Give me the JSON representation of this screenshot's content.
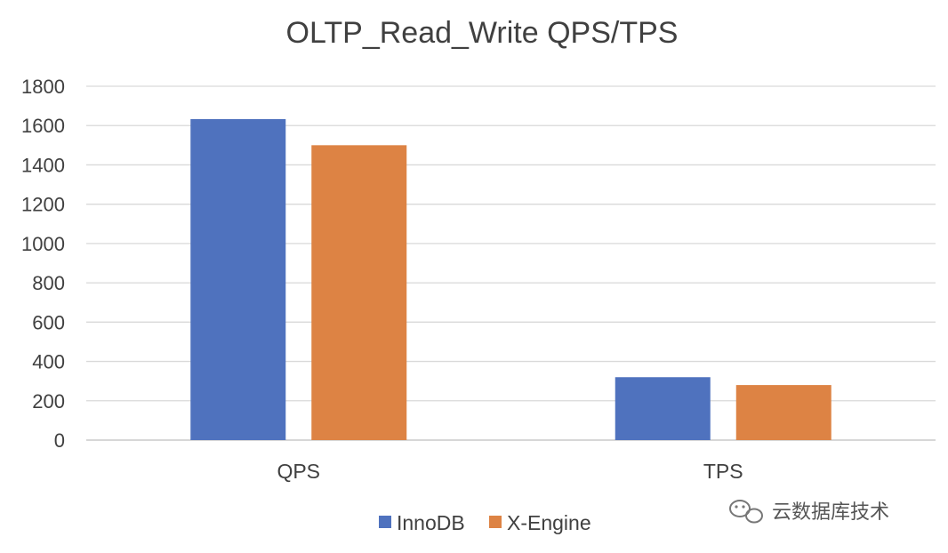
{
  "chart_data": {
    "type": "bar",
    "title": "OLTP_Read_Write QPS/TPS",
    "categories": [
      "QPS",
      "TPS"
    ],
    "series": [
      {
        "name": "InnoDB",
        "values": [
          1633,
          320
        ],
        "color": "#4F72BE"
      },
      {
        "name": "X-Engine",
        "values": [
          1500,
          280
        ],
        "color": "#DD8344"
      }
    ],
    "ylim": [
      0,
      1800
    ],
    "yticks": [
      0,
      200,
      400,
      600,
      800,
      1000,
      1200,
      1400,
      1600,
      1800
    ],
    "grid": true,
    "legend_position": "bottom"
  },
  "watermark": {
    "text": "云数据库技术",
    "icon": "wechat-icon"
  }
}
